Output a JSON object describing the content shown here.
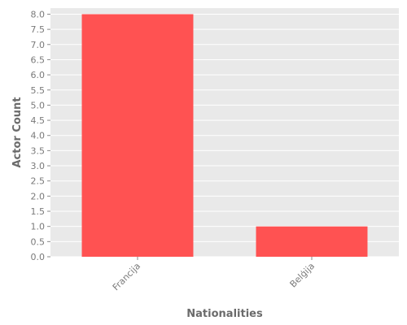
{
  "chart_data": {
    "type": "bar",
    "categories": [
      "Francija",
      "Belģija"
    ],
    "values": [
      8,
      1
    ],
    "xlabel": "Nationalities",
    "ylabel": "Actor Count",
    "ylim": [
      0,
      8.2
    ],
    "yticks": [
      "0.0",
      "0.5",
      "1.0",
      "1.5",
      "2.0",
      "2.5",
      "3.0",
      "3.5",
      "4.0",
      "4.5",
      "5.0",
      "5.5",
      "6.0",
      "6.5",
      "7.0",
      "7.5",
      "8.0"
    ],
    "grid": true,
    "legend": "none",
    "colors": {
      "bar": "#ff5252",
      "plot_background": "#e9e9e9",
      "grid": "#ffffff",
      "tick_text": "#7a7a7a",
      "axis_title": "#6b6b6b"
    }
  }
}
